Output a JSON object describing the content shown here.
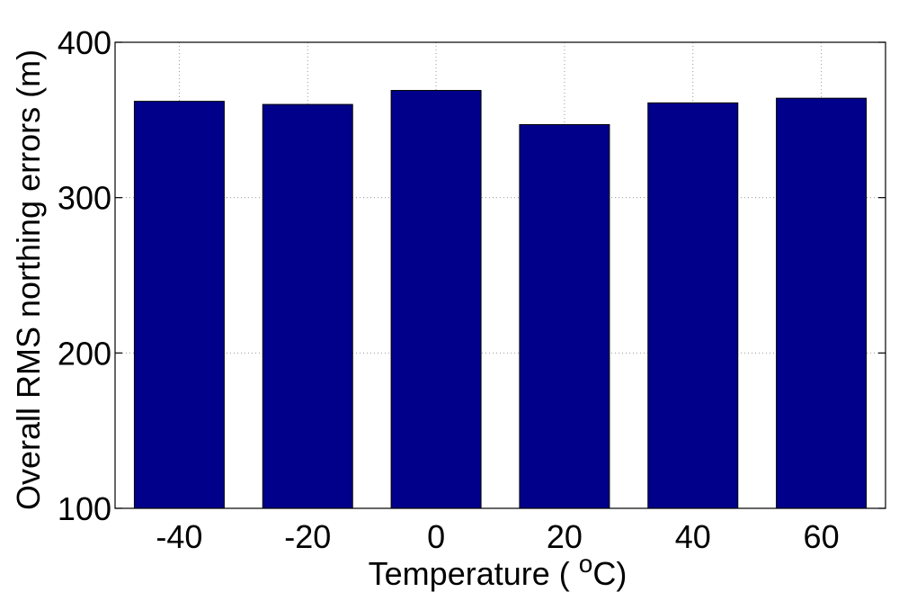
{
  "chart_data": {
    "type": "bar",
    "categories": [
      "-40",
      "-20",
      "0",
      "20",
      "40",
      "60"
    ],
    "values": [
      362,
      360,
      369,
      347,
      361,
      364
    ],
    "xlabel": {
      "prefix": "Temperature ( ",
      "superscript": "o",
      "suffix": "C)"
    },
    "ylabel": "Overall RMS northing errors (m)",
    "ylim": [
      100,
      400
    ],
    "yticks": [
      100,
      200,
      300,
      400
    ],
    "grid": true,
    "bar_color": "#00008b"
  }
}
